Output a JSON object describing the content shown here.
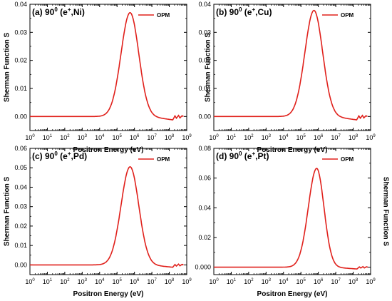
{
  "figure": {
    "xlabel": "Positron Energy (eV)",
    "ylabel": "Sherman Function S",
    "legend_label": "OPM",
    "curve_color": "#e0201b"
  },
  "chart_data": [
    {
      "type": "line",
      "panel_title": "(a) 90",
      "title_sup": "0",
      "title_rest": "(e",
      "title_sup2": "+",
      "title_end": ",Ni)",
      "x_scale": "log",
      "xlim": [
        1,
        1000000000
      ],
      "ylim": [
        -0.005,
        0.04
      ],
      "yticks": [
        0.0,
        0.01,
        0.02,
        0.03,
        0.04
      ],
      "ytick_labels": [
        "0.00",
        "0.01",
        "0.02",
        "0.03",
        "0.04"
      ],
      "legend": "top-right",
      "series": [
        {
          "name": "OPM",
          "peak_x": 560000,
          "peak_y": 0.037,
          "width_left": 0.52,
          "width_right": 0.5,
          "tail_x": 160000000
        }
      ]
    },
    {
      "type": "line",
      "panel_title": "(b) 90",
      "title_sup": "0",
      "title_rest": "(e",
      "title_sup2": "+",
      "title_end": ",Cu)",
      "x_scale": "log",
      "xlim": [
        1,
        1000000000
      ],
      "ylim": [
        -0.005,
        0.04
      ],
      "yticks": [
        0.0,
        0.01,
        0.02,
        0.03,
        0.04
      ],
      "ytick_labels": [
        "0.00",
        "0.01",
        "0.02",
        "0.03",
        "0.04"
      ],
      "legend": "top-right",
      "series": [
        {
          "name": "OPM",
          "peak_x": 560000,
          "peak_y": 0.0378,
          "width_left": 0.52,
          "width_right": 0.5,
          "tail_x": 160000000
        }
      ]
    },
    {
      "type": "line",
      "panel_title": "(c) 90",
      "title_sup": "0",
      "title_rest": "(e",
      "title_sup2": "+",
      "title_end": ",Pd)",
      "x_scale": "log",
      "xlim": [
        1,
        1000000000
      ],
      "ylim": [
        -0.005,
        0.06
      ],
      "yticks": [
        0.0,
        0.01,
        0.02,
        0.03,
        0.04,
        0.05,
        0.06
      ],
      "ytick_labels": [
        "0.00",
        "0.01",
        "0.02",
        "0.03",
        "0.04",
        "0.05",
        "0.06"
      ],
      "legend": "top-right",
      "series": [
        {
          "name": "OPM",
          "peak_x": 560000,
          "peak_y": 0.0505,
          "width_left": 0.52,
          "width_right": 0.5,
          "tail_x": 160000000
        }
      ]
    },
    {
      "type": "line",
      "panel_title": "(d) 90",
      "title_sup": "0",
      "title_rest": "(e",
      "title_sup2": "+",
      "title_end": ",Pt)",
      "x_scale": "log",
      "xlim": [
        1,
        1000000000
      ],
      "ylim": [
        -0.005,
        0.08
      ],
      "yticks": [
        0.0,
        0.02,
        0.04,
        0.06,
        0.08
      ],
      "ytick_labels": [
        "0.000",
        "0.02",
        "0.04",
        "0.06",
        "0.08"
      ],
      "legend": "top-right",
      "series": [
        {
          "name": "OPM",
          "peak_x": 800000,
          "peak_y": 0.0665,
          "width_left": 0.48,
          "width_right": 0.42,
          "tail_x": 170000000
        }
      ]
    }
  ]
}
